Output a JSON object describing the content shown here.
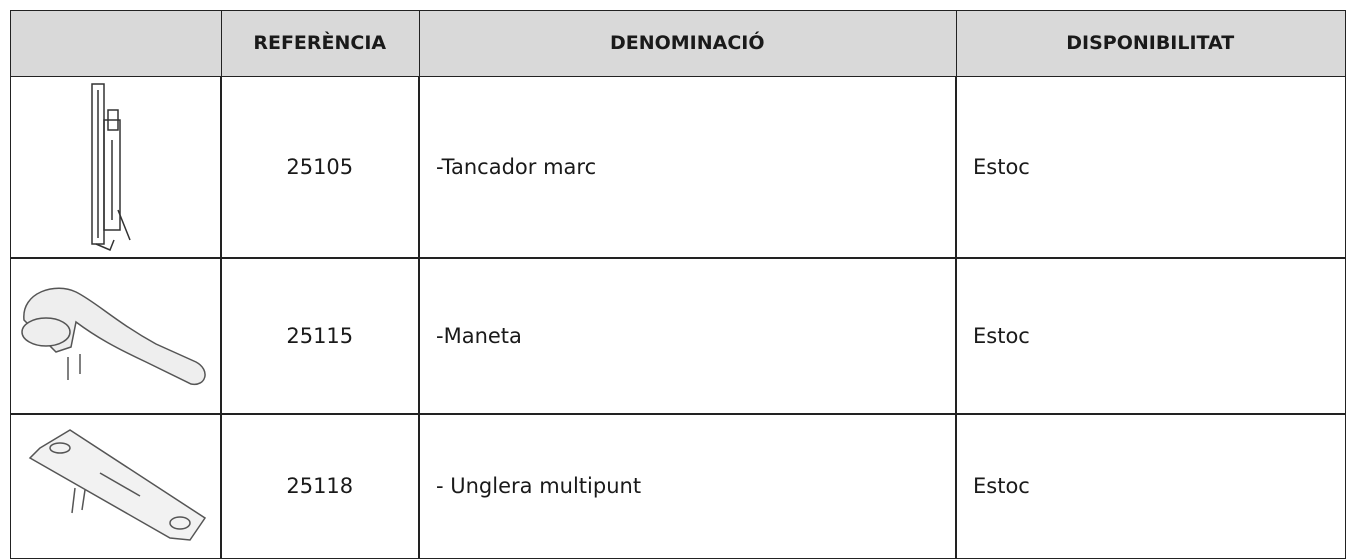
{
  "table": {
    "headers": [
      "REFERÈNCIA",
      "DENOMINACIÓ",
      "DISPONIBILITAT"
    ],
    "rows": [
      [
        "25105",
        "-Tancador marc",
        "Estoc"
      ],
      [
        "25115",
        "-Maneta",
        "Estoc"
      ],
      [
        "25118",
        "- Unglera multipunt",
        "Estoc"
      ]
    ]
  }
}
